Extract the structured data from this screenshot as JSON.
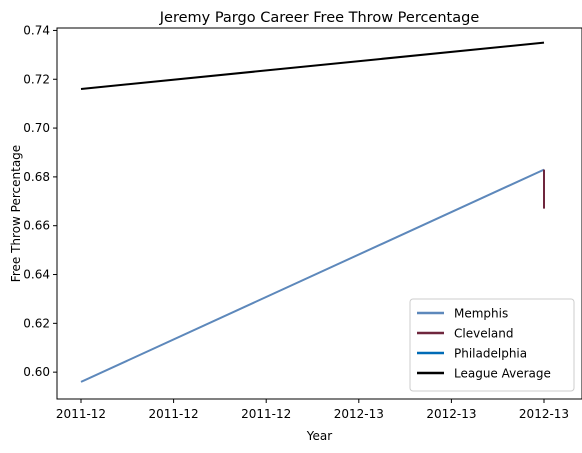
{
  "chart_data": {
    "type": "line",
    "title": "Jeremy Pargo Career Free Throw Percentage",
    "xlabel": "Year",
    "ylabel": "Free Throw Percentage",
    "x_tick_labels": [
      "2011-12",
      "2011-12",
      "2011-12",
      "2012-13",
      "2012-13",
      "2012-13"
    ],
    "x_domain": [
      0,
      1
    ],
    "ylim": [
      0.589,
      0.741
    ],
    "y_ticks": [
      0.6,
      0.62,
      0.64,
      0.66,
      0.68,
      0.7,
      0.72,
      0.74
    ],
    "y_tick_labels": [
      "0.60",
      "0.62",
      "0.64",
      "0.66",
      "0.68",
      "0.70",
      "0.72",
      "0.74"
    ],
    "grid": false,
    "legend_position": "bottom-right",
    "series": [
      {
        "name": "Memphis",
        "color": "#5D88BB",
        "points": [
          [
            0,
            0.596
          ],
          [
            1,
            0.683
          ]
        ]
      },
      {
        "name": "Cleveland",
        "color": "#6F263D",
        "points": [
          [
            1,
            0.683
          ],
          [
            1,
            0.667
          ]
        ]
      },
      {
        "name": "Philadelphia",
        "color": "#006BB6",
        "points": []
      },
      {
        "name": "League Average",
        "color": "#000000",
        "points": [
          [
            0,
            0.716
          ],
          [
            1,
            0.735
          ]
        ]
      }
    ]
  }
}
